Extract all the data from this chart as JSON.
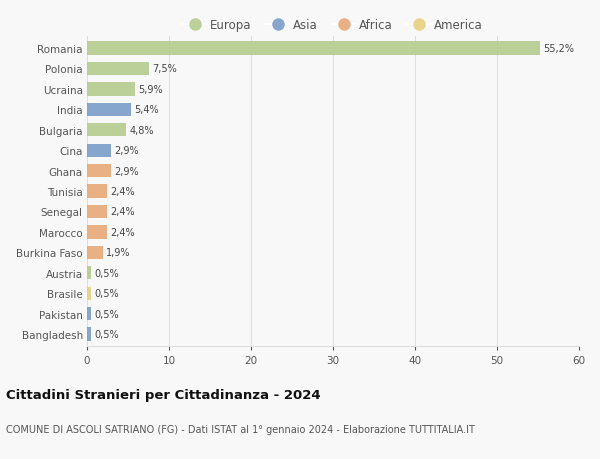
{
  "countries": [
    "Romania",
    "Polonia",
    "Ucraina",
    "India",
    "Bulgaria",
    "Cina",
    "Ghana",
    "Tunisia",
    "Senegal",
    "Marocco",
    "Burkina Faso",
    "Austria",
    "Brasile",
    "Pakistan",
    "Bangladesh"
  ],
  "values": [
    55.2,
    7.5,
    5.9,
    5.4,
    4.8,
    2.9,
    2.9,
    2.4,
    2.4,
    2.4,
    1.9,
    0.5,
    0.5,
    0.5,
    0.5
  ],
  "labels": [
    "55,2%",
    "7,5%",
    "5,9%",
    "5,4%",
    "4,8%",
    "2,9%",
    "2,9%",
    "2,4%",
    "2,4%",
    "2,4%",
    "1,9%",
    "0,5%",
    "0,5%",
    "0,5%",
    "0,5%"
  ],
  "continents": [
    "Europa",
    "Europa",
    "Europa",
    "Asia",
    "Europa",
    "Asia",
    "Africa",
    "Africa",
    "Africa",
    "Africa",
    "Africa",
    "Europa",
    "America",
    "Asia",
    "Asia"
  ],
  "colors": {
    "Europa": "#b5cc8e",
    "Asia": "#7b9dc9",
    "Africa": "#e8a878",
    "America": "#e8d080"
  },
  "xlim": [
    0,
    60
  ],
  "xticks": [
    0,
    10,
    20,
    30,
    40,
    50,
    60
  ],
  "title": "Cittadini Stranieri per Cittadinanza - 2024",
  "subtitle": "COMUNE DI ASCOLI SATRIANO (FG) - Dati ISTAT al 1° gennaio 2024 - Elaborazione TUTTITALIA.IT",
  "background_color": "#f8f8f8",
  "grid_color": "#dddddd",
  "legend_order": [
    "Europa",
    "Asia",
    "Africa",
    "America"
  ]
}
